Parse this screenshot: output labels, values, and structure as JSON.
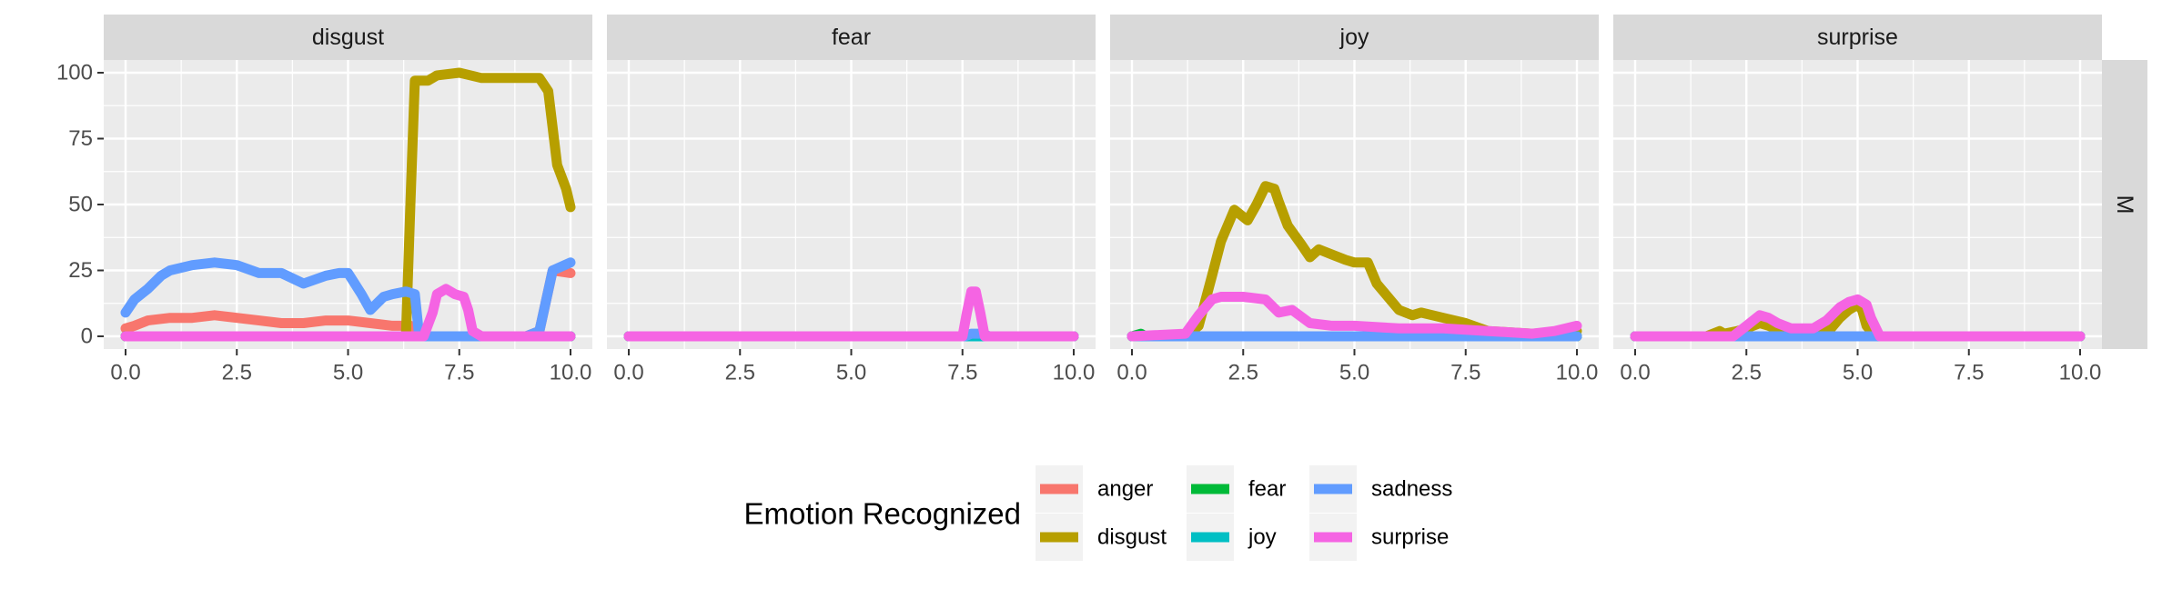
{
  "chart_data": {
    "type": "line",
    "facet_columns": [
      "disgust",
      "fear",
      "joy",
      "surprise"
    ],
    "facet_row": "M",
    "xlabel": "",
    "ylabel": "",
    "xlim": [
      0,
      10
    ],
    "ylim": [
      0,
      100
    ],
    "x_ticks": [
      0,
      2.5,
      5,
      7.5,
      10
    ],
    "x_tick_labels": [
      "0.0",
      "2.5",
      "5.0",
      "7.5",
      "10.0"
    ],
    "y_ticks": [
      0,
      25,
      50,
      75,
      100
    ],
    "y_tick_labels": [
      "0",
      "25",
      "50",
      "75",
      "100"
    ],
    "grid": true,
    "legend": {
      "title": "Emotion Recognized",
      "position": "bottom",
      "entries": [
        "anger",
        "disgust",
        "fear",
        "joy",
        "sadness",
        "surprise"
      ]
    },
    "colors": {
      "anger": "#F8766D",
      "disgust": "#B79F00",
      "fear": "#00BA38",
      "joy": "#00BFC4",
      "sadness": "#619CFF",
      "surprise": "#F564E3"
    },
    "panels": [
      {
        "facet": "disgust",
        "series": [
          {
            "name": "anger",
            "x": [
              0,
              0.2,
              0.5,
              1.0,
              1.5,
              2.0,
              2.5,
              3.0,
              3.5,
              4.0,
              4.5,
              5.0,
              5.5,
              6.0,
              6.4,
              6.5,
              7.0,
              8.0,
              9.0,
              9.3,
              9.6,
              10.0
            ],
            "y": [
              3,
              4,
              6,
              7,
              7,
              8,
              7,
              6,
              5,
              5,
              6,
              6,
              5,
              4,
              4,
              0,
              0,
              0,
              0,
              2,
              25,
              24
            ]
          },
          {
            "name": "disgust",
            "x": [
              0,
              6.3,
              6.4,
              6.5,
              6.8,
              7.0,
              7.5,
              8.0,
              8.5,
              9.0,
              9.3,
              9.5,
              9.7,
              9.9,
              10.0
            ],
            "y": [
              0,
              0,
              50,
              97,
              97,
              99,
              100,
              98,
              98,
              98,
              98,
              93,
              65,
              56,
              49
            ]
          },
          {
            "name": "fear",
            "x": [
              0,
              10
            ],
            "y": [
              0,
              0
            ]
          },
          {
            "name": "joy",
            "x": [
              0,
              10
            ],
            "y": [
              0,
              0
            ]
          },
          {
            "name": "sadness",
            "x": [
              0,
              0.2,
              0.5,
              0.8,
              1.0,
              1.5,
              2.0,
              2.5,
              3.0,
              3.5,
              4.0,
              4.5,
              4.8,
              5.0,
              5.3,
              5.5,
              5.8,
              6.0,
              6.3,
              6.5,
              6.6,
              7.0,
              8.0,
              9.0,
              9.3,
              9.6,
              10.0
            ],
            "y": [
              9,
              14,
              18,
              23,
              25,
              27,
              28,
              27,
              24,
              24,
              20,
              23,
              24,
              24,
              16,
              10,
              15,
              16,
              17,
              16,
              0,
              0,
              0,
              0,
              2,
              25,
              28
            ]
          },
          {
            "name": "surprise",
            "x": [
              0,
              6.7,
              6.9,
              7.0,
              7.2,
              7.4,
              7.6,
              7.7,
              7.8,
              8.0,
              10.0
            ],
            "y": [
              0,
              0,
              9,
              16,
              18,
              16,
              15,
              10,
              2,
              0,
              0
            ]
          }
        ]
      },
      {
        "facet": "fear",
        "series": [
          {
            "name": "anger",
            "x": [
              0,
              10
            ],
            "y": [
              0,
              0
            ]
          },
          {
            "name": "disgust",
            "x": [
              0,
              10
            ],
            "y": [
              0,
              0
            ]
          },
          {
            "name": "fear",
            "x": [
              0,
              10
            ],
            "y": [
              0,
              0
            ]
          },
          {
            "name": "joy",
            "x": [
              0,
              10
            ],
            "y": [
              0,
              0
            ]
          },
          {
            "name": "sadness",
            "x": [
              0,
              7.55,
              7.7,
              7.95,
              8.1,
              10
            ],
            "y": [
              0,
              0,
              1,
              1,
              0,
              0
            ]
          },
          {
            "name": "surprise",
            "x": [
              0,
              7.5,
              7.6,
              7.7,
              7.8,
              7.9,
              8.0,
              10
            ],
            "y": [
              0,
              0,
              9,
              17,
              17,
              9,
              0,
              0
            ]
          }
        ]
      },
      {
        "facet": "joy",
        "series": [
          {
            "name": "anger",
            "x": [
              0,
              10
            ],
            "y": [
              0,
              0
            ]
          },
          {
            "name": "disgust",
            "x": [
              0,
              1.2,
              1.5,
              1.8,
              2.0,
              2.3,
              2.6,
              2.8,
              3.0,
              3.2,
              3.3,
              3.5,
              3.8,
              4.0,
              4.2,
              4.5,
              4.8,
              5.0,
              5.3,
              5.5,
              5.8,
              6.0,
              6.3,
              6.5,
              7.0,
              7.5,
              8.0,
              9.0,
              10.0
            ],
            "y": [
              0,
              0,
              4,
              23,
              36,
              48,
              44,
              50,
              57,
              56,
              51,
              42,
              35,
              30,
              33,
              31,
              29,
              28,
              28,
              20,
              14,
              10,
              8,
              9,
              7,
              5,
              2,
              1,
              2
            ]
          },
          {
            "name": "fear",
            "x": [
              0,
              0.2,
              0.3,
              0.5,
              10
            ],
            "y": [
              0,
              1,
              0,
              0,
              0
            ]
          },
          {
            "name": "joy",
            "x": [
              0,
              10
            ],
            "y": [
              0,
              0
            ]
          },
          {
            "name": "sadness",
            "x": [
              0,
              10
            ],
            "y": [
              0,
              0
            ]
          },
          {
            "name": "surprise",
            "x": [
              0,
              1.2,
              1.5,
              1.8,
              2.0,
              2.5,
              3.0,
              3.3,
              3.6,
              4.0,
              4.5,
              5.0,
              6.0,
              7.0,
              8.0,
              9.0,
              9.5,
              10.0
            ],
            "y": [
              0,
              1,
              8,
              14,
              15,
              15,
              14,
              9,
              10,
              5,
              4,
              4,
              3,
              3,
              2,
              1,
              2,
              4
            ]
          }
        ]
      },
      {
        "facet": "surprise",
        "series": [
          {
            "name": "anger",
            "x": [
              0,
              10
            ],
            "y": [
              0,
              0
            ]
          },
          {
            "name": "disgust",
            "x": [
              0,
              1.6,
              1.9,
              2.0,
              2.3,
              2.5,
              2.8,
              3.0,
              3.3,
              3.5,
              4.0,
              4.4,
              4.6,
              4.8,
              5.0,
              5.1,
              5.2,
              5.4,
              10.0
            ],
            "y": [
              0,
              0,
              2,
              1,
              2,
              3,
              5,
              4,
              2,
              1,
              1,
              3,
              7,
              10,
              12,
              10,
              4,
              0,
              0
            ]
          },
          {
            "name": "fear",
            "x": [
              0,
              10
            ],
            "y": [
              0,
              0
            ]
          },
          {
            "name": "joy",
            "x": [
              0,
              10
            ],
            "y": [
              0,
              0
            ]
          },
          {
            "name": "sadness",
            "x": [
              0,
              10
            ],
            "y": [
              0,
              0
            ]
          },
          {
            "name": "surprise",
            "x": [
              0,
              2.2,
              2.5,
              2.8,
              3.0,
              3.2,
              3.5,
              4.0,
              4.3,
              4.6,
              4.8,
              5.0,
              5.2,
              5.3,
              5.5,
              10.0
            ],
            "y": [
              0,
              0,
              4,
              8,
              7,
              5,
              3,
              3,
              6,
              11,
              13,
              14,
              12,
              7,
              0,
              0
            ]
          }
        ]
      }
    ]
  }
}
